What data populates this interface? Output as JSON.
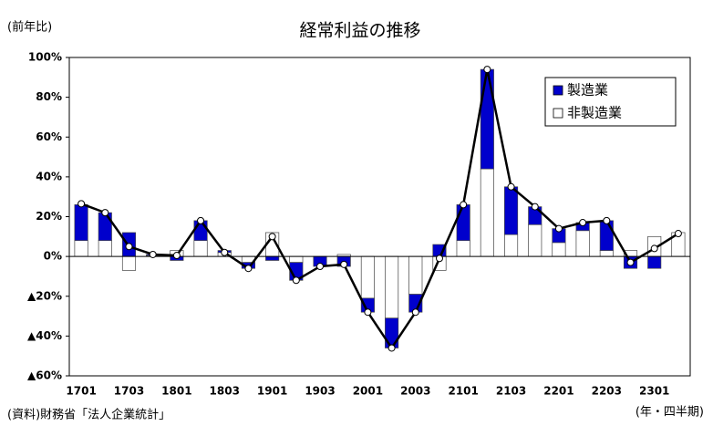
{
  "chart_data": {
    "type": "bar",
    "title": "経常利益の推移",
    "y_unit": "(前年比)",
    "source": "(資料)財務省「法人企業統計」",
    "x_label": "(年・四半期)",
    "categories": [
      "1701",
      null,
      "1703",
      null,
      "1801",
      null,
      "1803",
      null,
      "1901",
      null,
      "1903",
      null,
      "2001",
      null,
      "2003",
      null,
      "2101",
      null,
      "2103",
      null,
      "2201",
      null,
      "2203",
      null,
      "2301",
      null
    ],
    "series": [
      {
        "name": "製造業",
        "color": "#0000cc",
        "values": [
          18,
          14,
          12,
          0.5,
          -2,
          10,
          1,
          -3,
          -2,
          -9,
          -5,
          -5,
          -7,
          -15,
          -9,
          6,
          18,
          50,
          24,
          9,
          7,
          4,
          15,
          -6,
          -6,
          0
        ]
      },
      {
        "name": "非製造業",
        "color": "#ffffff",
        "values": [
          8,
          8,
          -7,
          0.5,
          3,
          8,
          2,
          -3,
          12,
          -3,
          0,
          1,
          -21,
          -31,
          -19,
          -7,
          8,
          44,
          11,
          16,
          7,
          13,
          3,
          3,
          10,
          12
        ]
      }
    ],
    "total": [
      26.5,
      22,
      5,
      1,
      0.5,
      18,
      2,
      -6,
      10,
      -12,
      -5,
      -4,
      -28,
      -46,
      -28,
      -1,
      26,
      94,
      35,
      25,
      14,
      17,
      18,
      -3,
      4,
      11.5
    ],
    "ylim": [
      -60,
      100
    ],
    "yticks": [
      {
        "value": -60,
        "label": "▲60%"
      },
      {
        "value": -40,
        "label": "▲40%"
      },
      {
        "value": -20,
        "label": "▲20%"
      },
      {
        "value": 0,
        "label": "0%"
      },
      {
        "value": 20,
        "label": "20%"
      },
      {
        "value": 40,
        "label": "40%"
      },
      {
        "value": 60,
        "label": "60%"
      },
      {
        "value": 80,
        "label": "80%"
      },
      {
        "value": 100,
        "label": "100%"
      }
    ],
    "grid": false,
    "legend": "upper right"
  }
}
